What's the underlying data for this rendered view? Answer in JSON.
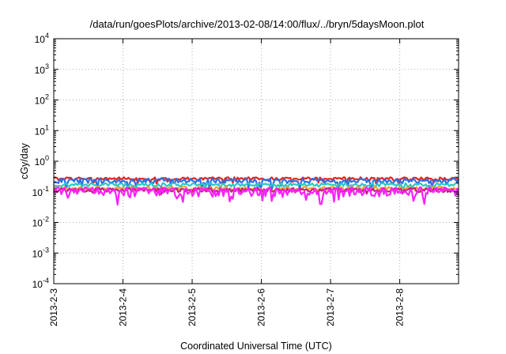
{
  "chart_data": {
    "type": "line",
    "title": "/data/run/goesPlots/archive/2013-02-08/14:00/flux/../bryn/5daysMoon.plot",
    "xlabel": "Coordinated Universal Time (UTC)",
    "ylabel": "cGy/day",
    "y_scale": "log",
    "ylim": [
      0.0001,
      10000
    ],
    "y_ticks": [
      {
        "value": 0.0001,
        "base": "10",
        "exp": "-4"
      },
      {
        "value": 0.001,
        "base": "10",
        "exp": "-3"
      },
      {
        "value": 0.01,
        "base": "10",
        "exp": "-2"
      },
      {
        "value": 0.1,
        "base": "10",
        "exp": "-1"
      },
      {
        "value": 1,
        "base": "10",
        "exp": "0"
      },
      {
        "value": 10,
        "base": "10",
        "exp": "1"
      },
      {
        "value": 100,
        "base": "10",
        "exp": "2"
      },
      {
        "value": 1000,
        "base": "10",
        "exp": "3"
      },
      {
        "value": 10000,
        "base": "10",
        "exp": "4"
      }
    ],
    "xlim": [
      0,
      5.85
    ],
    "x_unit": "days since 2013-2-3 00:00 UTC",
    "x_ticks": [
      {
        "value": 0,
        "label": "2013-2-3"
      },
      {
        "value": 1,
        "label": "2013-2-4"
      },
      {
        "value": 2,
        "label": "2013-2-5"
      },
      {
        "value": 3,
        "label": "2013-2-6"
      },
      {
        "value": 4,
        "label": "2013-2-7"
      },
      {
        "value": 5,
        "label": "2013-2-8"
      }
    ],
    "grid": true,
    "series": [
      {
        "color": "#e8231b",
        "base": 0.27,
        "noise": 0.05,
        "dip_prob": 0.04,
        "dip": 0.75
      },
      {
        "color": "#2e6fe6",
        "base": 0.23,
        "noise": 0.07,
        "dip_prob": 0.08,
        "dip": 0.6
      },
      {
        "color": "#2ec8c0",
        "base": 0.17,
        "noise": 0.04,
        "dip_prob": 0.04,
        "dip": 0.8
      },
      {
        "color": "#f0a030",
        "base": 0.13,
        "noise": 0.03,
        "dip_prob": 0.03,
        "dip": 0.85
      },
      {
        "color": "#c02080",
        "base": 0.115,
        "noise": 0.03,
        "dip_prob": 0.03,
        "dip": 0.85
      },
      {
        "color": "#ff20ff",
        "base": 0.105,
        "noise": 0.06,
        "dip_prob": 0.06,
        "dip": 0.55
      }
    ]
  }
}
